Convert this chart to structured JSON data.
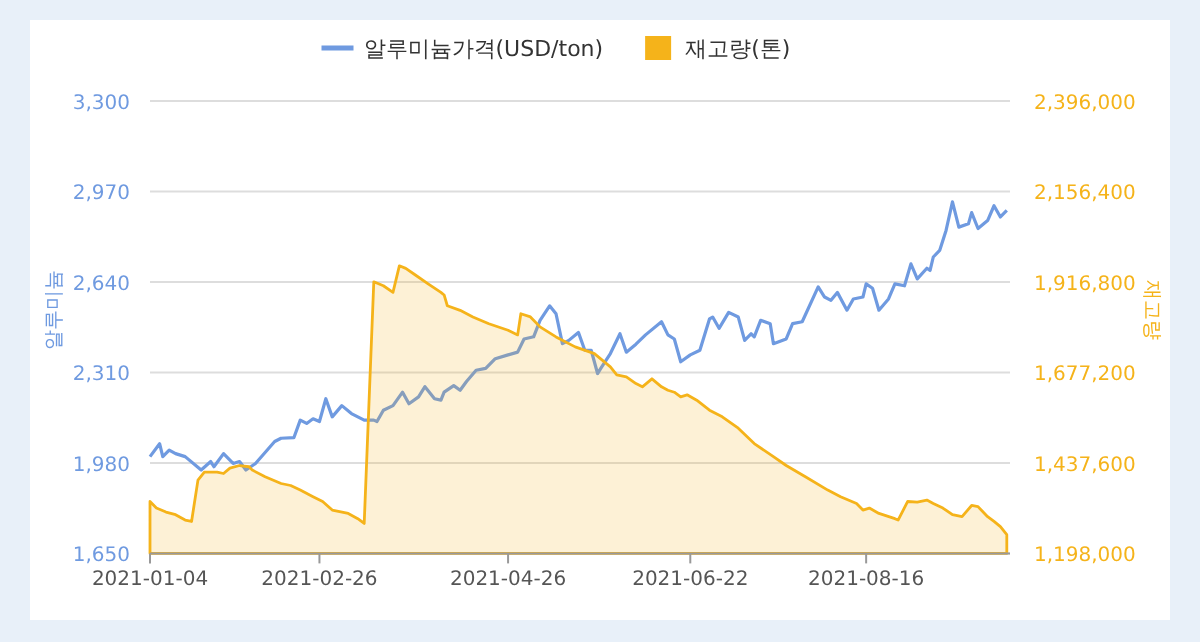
{
  "chart_data": {
    "type": "line",
    "ylabel": "알루미늄",
    "y2label": "재고량",
    "legend": "top",
    "grid": "y",
    "xlim": [
      "2021-01-04",
      "2021-09-30"
    ],
    "xticks": [
      "2021-01-04",
      "2021-02-26",
      "2021-04-26",
      "2021-06-22",
      "2021-08-16"
    ],
    "ylim": [
      1650,
      3300
    ],
    "yticks": [
      {
        "value": 1650,
        "label": "1,650"
      },
      {
        "value": 1980,
        "label": "1,980"
      },
      {
        "value": 2310,
        "label": "2,310"
      },
      {
        "value": 2640,
        "label": "2,640"
      },
      {
        "value": 2970,
        "label": "2,970"
      },
      {
        "value": 3300,
        "label": "3,300"
      }
    ],
    "y2lim": [
      1198000,
      2396000
    ],
    "y2ticks": [
      {
        "value": 1198000,
        "label": "1,198,000"
      },
      {
        "value": 1437600,
        "label": "1,437,600"
      },
      {
        "value": 1677200,
        "label": "1,677,200"
      },
      {
        "value": 1916800,
        "label": "1,916,800"
      },
      {
        "value": 2156400,
        "label": "2,156,400"
      },
      {
        "value": 2396000,
        "label": "2,396,000"
      }
    ],
    "series": [
      {
        "name": "알루미늄가격(USD/ton)",
        "color": "#6f9ae0",
        "x": [
          "2021-01-04",
          "2021-01-07",
          "2021-01-08",
          "2021-01-10",
          "2021-01-12",
          "2021-01-15",
          "2021-01-20",
          "2021-01-23",
          "2021-01-24",
          "2021-01-27",
          "2021-01-30",
          "2021-02-01",
          "2021-02-03",
          "2021-02-06",
          "2021-02-12",
          "2021-02-14",
          "2021-02-18",
          "2021-02-20",
          "2021-02-22",
          "2021-02-24",
          "2021-02-26",
          "2021-02-28",
          "2021-03-02",
          "2021-03-05",
          "2021-03-08",
          "2021-03-10",
          "2021-03-12",
          "2021-03-15",
          "2021-03-16",
          "2021-03-18",
          "2021-03-21",
          "2021-03-24",
          "2021-03-26",
          "2021-03-29",
          "2021-03-31",
          "2021-04-03",
          "2021-04-05",
          "2021-04-06",
          "2021-04-09",
          "2021-04-11",
          "2021-04-13",
          "2021-04-16",
          "2021-04-19",
          "2021-04-22",
          "2021-04-26",
          "2021-04-29",
          "2021-05-01",
          "2021-05-04",
          "2021-05-06",
          "2021-05-09",
          "2021-05-11",
          "2021-05-13",
          "2021-05-15",
          "2021-05-18",
          "2021-05-20",
          "2021-05-22",
          "2021-05-24",
          "2021-05-25",
          "2021-05-28",
          "2021-05-31",
          "2021-06-02",
          "2021-06-05",
          "2021-06-08",
          "2021-06-13",
          "2021-06-15",
          "2021-06-17",
          "2021-06-19",
          "2021-06-22",
          "2021-06-25",
          "2021-06-28",
          "2021-06-29",
          "2021-07-01",
          "2021-07-04",
          "2021-07-07",
          "2021-07-09",
          "2021-07-11",
          "2021-07-12",
          "2021-07-14",
          "2021-07-17",
          "2021-07-18",
          "2021-07-22",
          "2021-07-24",
          "2021-07-27",
          "2021-08-01",
          "2021-08-03",
          "2021-08-05",
          "2021-08-07",
          "2021-08-10",
          "2021-08-12",
          "2021-08-15",
          "2021-08-16",
          "2021-08-18",
          "2021-08-20",
          "2021-08-23",
          "2021-08-25",
          "2021-08-28",
          "2021-08-30",
          "2021-09-01",
          "2021-09-04",
          "2021-09-05",
          "2021-09-06",
          "2021-09-08",
          "2021-09-10",
          "2021-09-12",
          "2021-09-14",
          "2021-09-17",
          "2021-09-18",
          "2021-09-20",
          "2021-09-23",
          "2021-09-25",
          "2021-09-27",
          "2021-09-29"
        ],
        "values": [
          2003,
          2050,
          2003,
          2027,
          2014,
          2003,
          1954,
          1985,
          1966,
          2014,
          1978,
          1985,
          1954,
          1978,
          2058,
          2070,
          2072,
          2136,
          2124,
          2141,
          2131,
          2214,
          2148,
          2189,
          2160,
          2148,
          2136,
          2136,
          2131,
          2172,
          2189,
          2238,
          2196,
          2221,
          2258,
          2214,
          2209,
          2238,
          2262,
          2245,
          2277,
          2318,
          2325,
          2360,
          2374,
          2384,
          2432,
          2440,
          2500,
          2553,
          2524,
          2415,
          2427,
          2456,
          2391,
          2391,
          2306,
          2325,
          2379,
          2451,
          2384,
          2413,
          2447,
          2495,
          2447,
          2432,
          2349,
          2374,
          2391,
          2505,
          2512,
          2471,
          2529,
          2512,
          2427,
          2451,
          2440,
          2500,
          2488,
          2415,
          2432,
          2488,
          2495,
          2622,
          2585,
          2573,
          2602,
          2537,
          2578,
          2585,
          2633,
          2617,
          2537,
          2578,
          2633,
          2626,
          2706,
          2651,
          2690,
          2682,
          2731,
          2755,
          2828,
          2932,
          2840,
          2852,
          2893,
          2835,
          2864,
          2918,
          2877,
          2901
        ]
      },
      {
        "name": "재고량(톤)",
        "type": "area",
        "axis": "y2",
        "color": "#f5b31a",
        "x": [
          "2021-01-04",
          "2021-01-06",
          "2021-01-09",
          "2021-01-12",
          "2021-01-15",
          "2021-01-17",
          "2021-01-19",
          "2021-01-21",
          "2021-01-25",
          "2021-01-27",
          "2021-01-29",
          "2021-02-01",
          "2021-02-04",
          "2021-02-05",
          "2021-02-09",
          "2021-02-14",
          "2021-02-17",
          "2021-02-20",
          "2021-02-24",
          "2021-02-27",
          "2021-03-02",
          "2021-03-07",
          "2021-03-10",
          "2021-03-12",
          "2021-03-15",
          "2021-03-18",
          "2021-03-21",
          "2021-03-23",
          "2021-03-25",
          "2021-03-28",
          "2021-04-01",
          "2021-04-05",
          "2021-04-06",
          "2021-04-07",
          "2021-04-11",
          "2021-04-15",
          "2021-04-20",
          "2021-04-26",
          "2021-04-29",
          "2021-04-30",
          "2021-05-03",
          "2021-05-06",
          "2021-05-11",
          "2021-05-17",
          "2021-05-23",
          "2021-05-28",
          "2021-05-30",
          "2021-06-02",
          "2021-06-05",
          "2021-06-07",
          "2021-06-10",
          "2021-06-13",
          "2021-06-15",
          "2021-06-17",
          "2021-06-19",
          "2021-06-21",
          "2021-06-24",
          "2021-06-28",
          "2021-07-02",
          "2021-07-07",
          "2021-07-12",
          "2021-07-18",
          "2021-07-22",
          "2021-07-28",
          "2021-08-04",
          "2021-08-08",
          "2021-08-13",
          "2021-08-15",
          "2021-08-17",
          "2021-08-20",
          "2021-08-25",
          "2021-08-26",
          "2021-08-29",
          "2021-09-01",
          "2021-09-04",
          "2021-09-06",
          "2021-09-09",
          "2021-09-12",
          "2021-09-15",
          "2021-09-18",
          "2021-09-20",
          "2021-09-23",
          "2021-09-25",
          "2021-09-27",
          "2021-09-29"
        ],
        "values": [
          1335500,
          1318100,
          1307500,
          1300600,
          1286300,
          1282600,
          1392100,
          1413300,
          1413300,
          1409600,
          1423800,
          1430700,
          1427500,
          1418600,
          1401100,
          1383100,
          1377800,
          1365700,
          1348200,
          1335500,
          1312800,
          1303800,
          1290000,
          1277300,
          1917300,
          1906700,
          1889300,
          1959600,
          1952700,
          1935300,
          1912000,
          1889300,
          1882400,
          1853800,
          1841700,
          1824200,
          1806200,
          1788800,
          1776600,
          1832700,
          1824200,
          1797800,
          1771300,
          1744900,
          1726900,
          1692000,
          1670800,
          1665500,
          1647600,
          1639100,
          1660300,
          1639100,
          1630100,
          1624800,
          1612700,
          1618000,
          1603700,
          1577200,
          1559800,
          1529600,
          1488900,
          1454000,
          1430700,
          1401100,
          1365700,
          1348200,
          1330200,
          1312800,
          1318100,
          1303800,
          1290000,
          1286300,
          1335500,
          1333900,
          1339200,
          1330200,
          1318100,
          1300600,
          1295300,
          1324900,
          1321800,
          1295300,
          1282600,
          1268900,
          1247700
        ]
      }
    ]
  }
}
